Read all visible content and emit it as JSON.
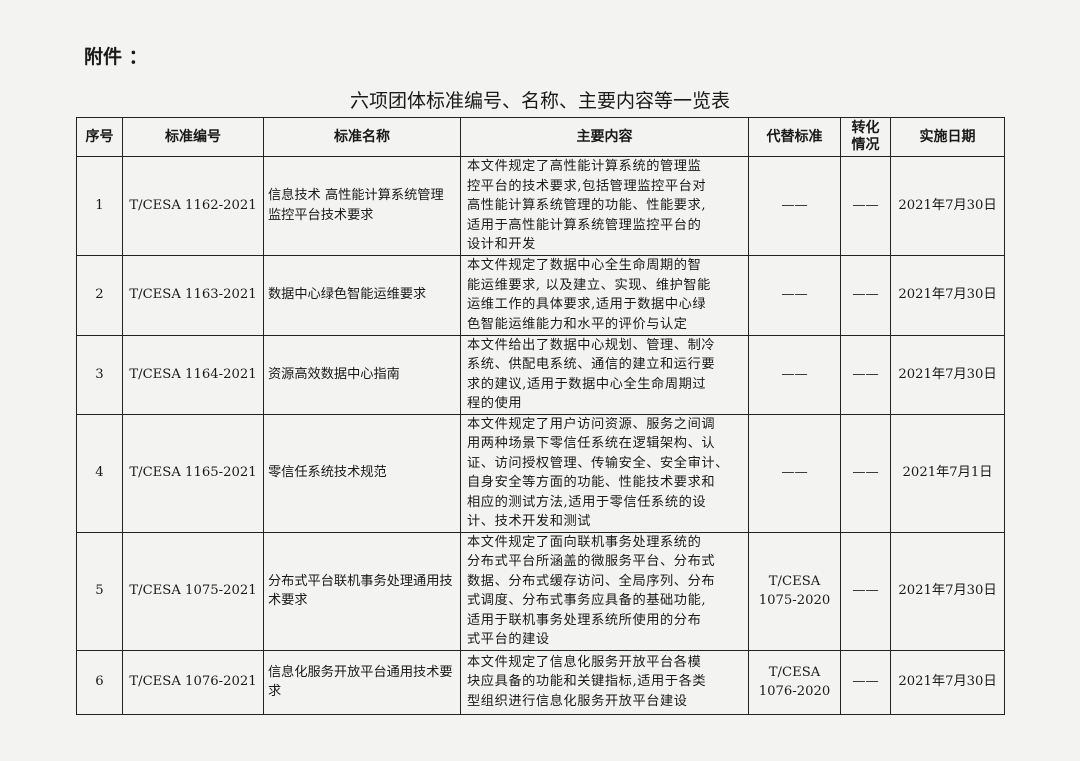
{
  "attachment_label": "附件 ：",
  "title": "六项团体标准编号、名称、主要内容等一览表",
  "headers": {
    "no": "序号",
    "code": "标准编号",
    "name": "标准名称",
    "content": "主要内容",
    "replace": "代替标准",
    "status": "转化情况",
    "date": "实施日期"
  },
  "rows": [
    {
      "no": "1",
      "code": "T/CESA 1162-2021",
      "name": "信息技术 高性能计算系统管理监控平台技术要求",
      "content": [
        "本文件规定了高性能计算系统的管理监",
        "控平台的技术要求,包括管理监控平台对",
        "高性能计算系统管理的功能、性能要求,",
        "适用于高性能计算系统管理监控平台的",
        "设计和开发"
      ],
      "replace": "——",
      "status": "——",
      "date": "2021年7月30日"
    },
    {
      "no": "2",
      "code": "T/CESA 1163-2021",
      "name": "数据中心绿色智能运维要求",
      "content": [
        "本文件规定了数据中心全生命周期的智",
        "能运维要求, 以及建立、实现、维护智能",
        "运维工作的具体要求,适用于数据中心绿",
        "色智能运维能力和水平的评价与认定"
      ],
      "replace": "——",
      "status": "——",
      "date": "2021年7月30日"
    },
    {
      "no": "3",
      "code": "T/CESA 1164-2021",
      "name": "资源高效数据中心指南",
      "content": [
        "本文件给出了数据中心规划、管理、制冷",
        "系统、供配电系统、通信的建立和运行要",
        "求的建议,适用于数据中心全生命周期过",
        "程的使用"
      ],
      "replace": "——",
      "status": "——",
      "date": "2021年7月30日"
    },
    {
      "no": "4",
      "code": "T/CESA 1165-2021",
      "name": "零信任系统技术规范",
      "content": [
        "本文件规定了用户访问资源、服务之间调",
        "用两种场景下零信任系统在逻辑架构、认",
        "证、访问授权管理、传输安全、安全审计、",
        "自身安全等方面的功能、性能技术要求和",
        "相应的测试方法,适用于零信任系统的设",
        "计、技术开发和测试"
      ],
      "replace": "——",
      "status": "——",
      "date": "2021年7月1日"
    },
    {
      "no": "5",
      "code": "T/CESA 1075-2021",
      "name": "分布式平台联机事务处理通用技术要求",
      "content": [
        "本文件规定了面向联机事务处理系统的",
        "分布式平台所涵盖的微服务平台、分布式",
        "数据、分布式缓存访问、全局序列、分布",
        "式调度、分布式事务应具备的基础功能,",
        "适用于联机事务处理系统所使用的分布",
        "式平台的建设"
      ],
      "replace": "T/CESA 1075-2020",
      "status": "——",
      "date": "2021年7月30日"
    },
    {
      "no": "6",
      "code": "T/CESA 1076-2021",
      "name": "信息化服务开放平台通用技术要求",
      "content": [
        "本文件规定了信息化服务开放平台各模",
        "块应具备的功能和关键指标,适用于各类",
        "型组织进行信息化服务开放平台建设"
      ],
      "replace": "T/CESA 1076-2020",
      "status": "——",
      "date": "2021年7月30日"
    }
  ]
}
